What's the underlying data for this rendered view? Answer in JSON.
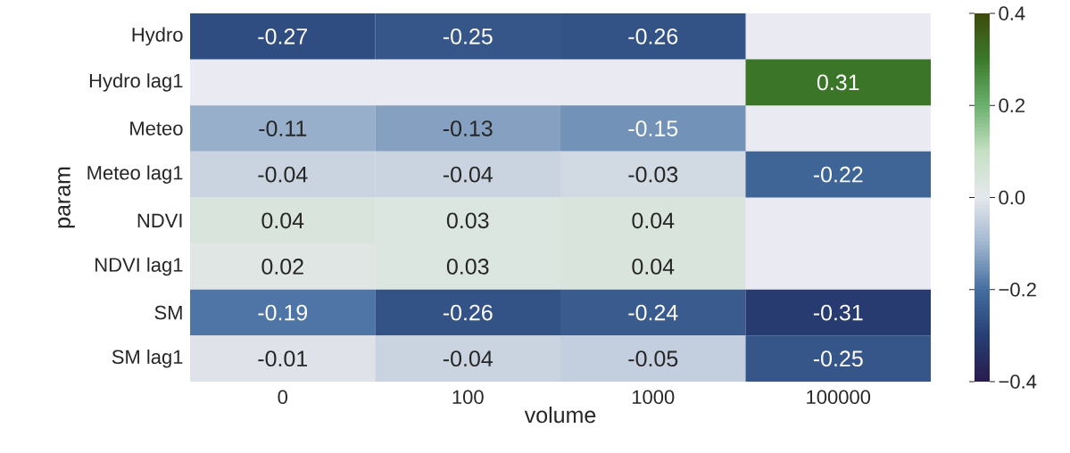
{
  "chart_data": {
    "type": "heatmap",
    "xlabel": "volume",
    "ylabel": "param",
    "categories": [
      "0",
      "100",
      "1000",
      "100000"
    ],
    "y_categories": [
      "Hydro",
      "Hydro lag1",
      "Meteo",
      "Meteo lag1",
      "NDVI",
      "NDVI lag1",
      "SM",
      "SM lag1"
    ],
    "cells": [
      [
        -0.27,
        -0.25,
        -0.26,
        null
      ],
      [
        null,
        null,
        null,
        0.31
      ],
      [
        -0.11,
        -0.13,
        -0.15,
        null
      ],
      [
        -0.04,
        -0.04,
        -0.03,
        -0.22
      ],
      [
        0.04,
        0.03,
        0.04,
        null
      ],
      [
        0.02,
        0.03,
        0.04,
        null
      ],
      [
        -0.19,
        -0.26,
        -0.24,
        -0.31
      ],
      [
        -0.01,
        -0.04,
        -0.05,
        -0.25
      ]
    ],
    "data_labels": true,
    "clim": [
      -0.4,
      0.4
    ],
    "cticks": [
      {
        "value": -0.4,
        "label": "−0.4"
      },
      {
        "value": -0.2,
        "label": "−0.2"
      },
      {
        "value": 0,
        "label": "0.0"
      },
      {
        "value": 0.2,
        "label": "0.2"
      },
      {
        "value": 0.4,
        "label": "0.4"
      }
    ]
  }
}
